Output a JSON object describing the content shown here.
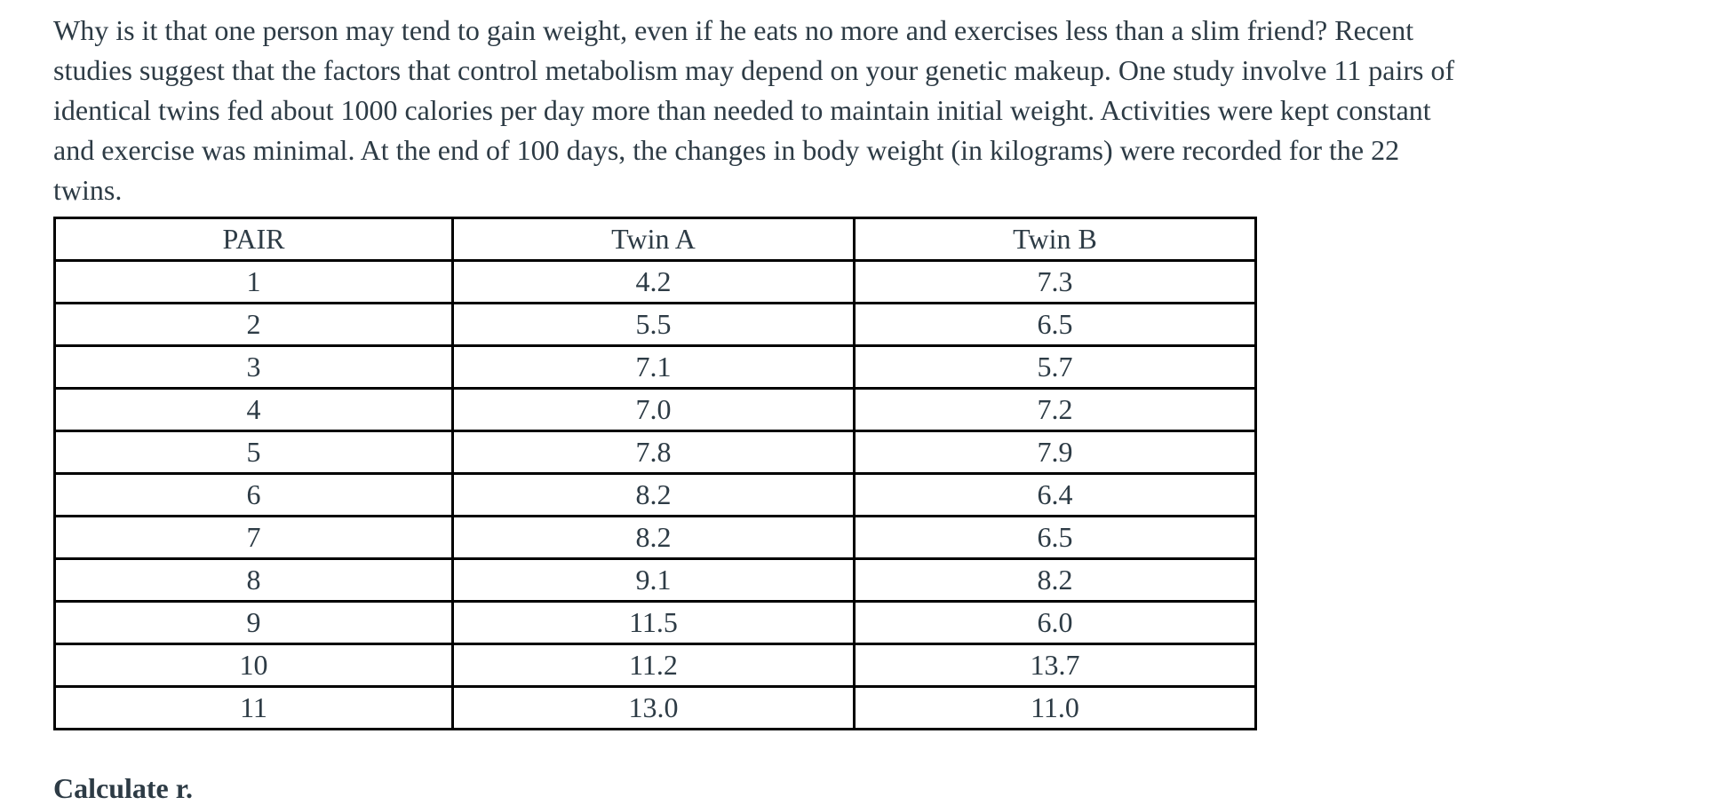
{
  "page": {
    "background_color": "#ffffff",
    "text_color": "#2d3b45",
    "table_border_color": "#000000"
  },
  "problem": {
    "paragraph_lines": [
      "Why is it that one person may tend to gain weight, even if he eats no more and exercises less than a slim friend? Recent",
      "studies suggest that the factors that control metabolism may depend on your genetic makeup. One study involve 11 pairs of",
      "identical twins fed about 1000 calories per day more than needed to maintain initial weight. Activities were kept constant",
      "and exercise was minimal. At the end of 100 days, the changes in body weight (in kilograms) were recorded for the 22",
      "twins."
    ]
  },
  "table": {
    "headers": [
      "PAIR",
      "Twin A",
      "Twin B"
    ],
    "rows": [
      {
        "pair": "1",
        "twin_a": "4.2",
        "twin_b": "7.3"
      },
      {
        "pair": "2",
        "twin_a": "5.5",
        "twin_b": "6.5"
      },
      {
        "pair": "3",
        "twin_a": "7.1",
        "twin_b": "5.7"
      },
      {
        "pair": "4",
        "twin_a": "7.0",
        "twin_b": "7.2"
      },
      {
        "pair": "5",
        "twin_a": "7.8",
        "twin_b": "7.9"
      },
      {
        "pair": "6",
        "twin_a": "8.2",
        "twin_b": "6.4"
      },
      {
        "pair": "7",
        "twin_a": "8.2",
        "twin_b": "6.5"
      },
      {
        "pair": "8",
        "twin_a": "9.1",
        "twin_b": "8.2"
      },
      {
        "pair": "9",
        "twin_a": "11.5",
        "twin_b": "6.0"
      },
      {
        "pair": "10",
        "twin_a": "11.2",
        "twin_b": "13.7"
      },
      {
        "pair": "11",
        "twin_a": "13.0",
        "twin_b": "11.0"
      }
    ]
  },
  "footer": {
    "instruction": "Calculate r."
  }
}
